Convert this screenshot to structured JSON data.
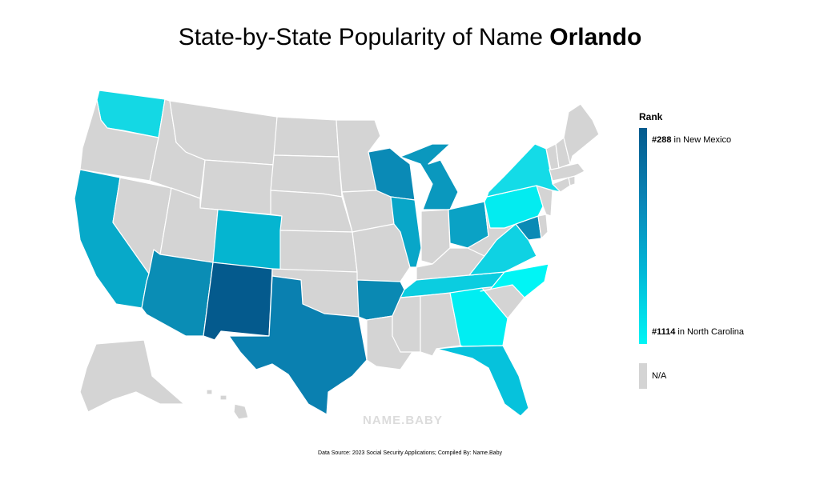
{
  "title": {
    "prefix": "State-by-State Popularity of Name ",
    "name": "Orlando"
  },
  "legend": {
    "heading": "Rank",
    "max_rank": "#288",
    "max_text": " in New Mexico",
    "min_rank": "#1114",
    "min_text": " in North Carolina",
    "na_label": "N/A",
    "colors": {
      "high": "#045a8d",
      "mid": "#0a87b8",
      "low": "#00f5f5",
      "na": "#d4d4d4"
    }
  },
  "watermark": "NAME.BABY",
  "source": "Data Source: 2023 Social Security Applications; Compiled By: Name.Baby",
  "states": [
    {
      "id": "WA",
      "name": "Washington",
      "color": "#14d8e4"
    },
    {
      "id": "OR",
      "name": "Oregon",
      "color": "#d4d4d4"
    },
    {
      "id": "CA",
      "name": "California",
      "color": "#07a9c9"
    },
    {
      "id": "NV",
      "name": "Nevada",
      "color": "#d4d4d4"
    },
    {
      "id": "ID",
      "name": "Idaho",
      "color": "#d4d4d4"
    },
    {
      "id": "MT",
      "name": "Montana",
      "color": "#d4d4d4"
    },
    {
      "id": "WY",
      "name": "Wyoming",
      "color": "#d4d4d4"
    },
    {
      "id": "UT",
      "name": "Utah",
      "color": "#d4d4d4"
    },
    {
      "id": "AZ",
      "name": "Arizona",
      "color": "#0a8db5"
    },
    {
      "id": "CO",
      "name": "Colorado",
      "color": "#05b5d0"
    },
    {
      "id": "NM",
      "name": "New Mexico",
      "color": "#045a8d"
    },
    {
      "id": "ND",
      "name": "North Dakota",
      "color": "#d4d4d4"
    },
    {
      "id": "SD",
      "name": "South Dakota",
      "color": "#d4d4d4"
    },
    {
      "id": "NE",
      "name": "Nebraska",
      "color": "#d4d4d4"
    },
    {
      "id": "KS",
      "name": "Kansas",
      "color": "#d4d4d4"
    },
    {
      "id": "OK",
      "name": "Oklahoma",
      "color": "#d4d4d4"
    },
    {
      "id": "TX",
      "name": "Texas",
      "color": "#0a80b0"
    },
    {
      "id": "MN",
      "name": "Minnesota",
      "color": "#d4d4d4"
    },
    {
      "id": "IA",
      "name": "Iowa",
      "color": "#d4d4d4"
    },
    {
      "id": "MO",
      "name": "Missouri",
      "color": "#d4d4d4"
    },
    {
      "id": "AR",
      "name": "Arkansas",
      "color": "#0a89b3"
    },
    {
      "id": "LA",
      "name": "Louisiana",
      "color": "#d4d4d4"
    },
    {
      "id": "WI",
      "name": "Wisconsin",
      "color": "#0a8ab6"
    },
    {
      "id": "IL",
      "name": "Illinois",
      "color": "#08a6c8"
    },
    {
      "id": "MI",
      "name": "Michigan",
      "color": "#0a98be"
    },
    {
      "id": "IN",
      "name": "Indiana",
      "color": "#d4d4d4"
    },
    {
      "id": "OH",
      "name": "Ohio",
      "color": "#0aa2c5"
    },
    {
      "id": "KY",
      "name": "Kentucky",
      "color": "#d4d4d4"
    },
    {
      "id": "TN",
      "name": "Tennessee",
      "color": "#0bcde0"
    },
    {
      "id": "MS",
      "name": "Mississippi",
      "color": "#d4d4d4"
    },
    {
      "id": "AL",
      "name": "Alabama",
      "color": "#d4d4d4"
    },
    {
      "id": "GA",
      "name": "Georgia",
      "color": "#00eef2"
    },
    {
      "id": "FL",
      "name": "Florida",
      "color": "#06c2dc"
    },
    {
      "id": "SC",
      "name": "South Carolina",
      "color": "#d4d4d4"
    },
    {
      "id": "NC",
      "name": "North Carolina",
      "color": "#00f5f5"
    },
    {
      "id": "VA",
      "name": "Virginia",
      "color": "#0fd2e3"
    },
    {
      "id": "WV",
      "name": "West Virginia",
      "color": "#d4d4d4"
    },
    {
      "id": "MD",
      "name": "Maryland",
      "color": "#0a8ab5"
    },
    {
      "id": "DE",
      "name": "Delaware",
      "color": "#d4d4d4"
    },
    {
      "id": "PA",
      "name": "Pennsylvania",
      "color": "#03ecf0"
    },
    {
      "id": "NJ",
      "name": "New Jersey",
      "color": "#d4d4d4"
    },
    {
      "id": "NY",
      "name": "New York",
      "color": "#14dbe7"
    },
    {
      "id": "CT",
      "name": "Connecticut",
      "color": "#d4d4d4"
    },
    {
      "id": "RI",
      "name": "Rhode Island",
      "color": "#d4d4d4"
    },
    {
      "id": "MA",
      "name": "Massachusetts",
      "color": "#d4d4d4"
    },
    {
      "id": "VT",
      "name": "Vermont",
      "color": "#d4d4d4"
    },
    {
      "id": "NH",
      "name": "New Hampshire",
      "color": "#d4d4d4"
    },
    {
      "id": "ME",
      "name": "Maine",
      "color": "#d4d4d4"
    },
    {
      "id": "AK",
      "name": "Alaska",
      "color": "#d4d4d4"
    },
    {
      "id": "HI",
      "name": "Hawaii",
      "color": "#d4d4d4"
    }
  ]
}
